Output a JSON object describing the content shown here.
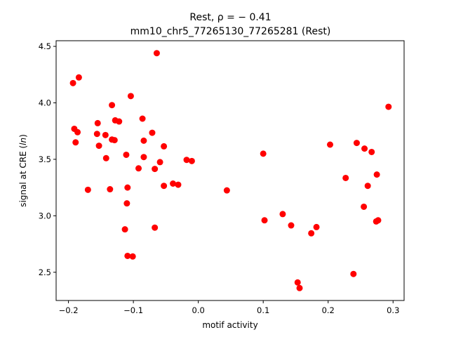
{
  "chart_data": {
    "type": "scatter",
    "title_line1": "Rest, ρ = − 0.41",
    "title_line2": "mm10_chr5_77265130_77265281 (Rest)",
    "xlabel": "motif activity",
    "ylabel": "signal at CRE (ln)",
    "xlim": [
      -0.219,
      0.317
    ],
    "ylim": [
      2.25,
      4.55
    ],
    "xticks": [
      -0.2,
      -0.1,
      0.0,
      0.1,
      0.2,
      0.3
    ],
    "xtick_labels": [
      "−0.2",
      "−0.1",
      "0.0",
      "0.1",
      "0.2",
      "0.3"
    ],
    "yticks": [
      2.5,
      3.0,
      3.5,
      4.0,
      4.5
    ],
    "ytick_labels": [
      "2.5",
      "3.0",
      "3.5",
      "4.0",
      "4.5"
    ],
    "grid": false,
    "marker_color": "#ff0000",
    "points": [
      {
        "x": -0.193,
        "y": 4.175
      },
      {
        "x": -0.184,
        "y": 4.225
      },
      {
        "x": -0.191,
        "y": 3.77
      },
      {
        "x": -0.186,
        "y": 3.74
      },
      {
        "x": -0.189,
        "y": 3.65
      },
      {
        "x": -0.17,
        "y": 3.23
      },
      {
        "x": -0.155,
        "y": 3.82
      },
      {
        "x": -0.156,
        "y": 3.725
      },
      {
        "x": -0.153,
        "y": 3.62
      },
      {
        "x": -0.143,
        "y": 3.715
      },
      {
        "x": -0.142,
        "y": 3.51
      },
      {
        "x": -0.136,
        "y": 3.235
      },
      {
        "x": -0.133,
        "y": 3.98
      },
      {
        "x": -0.133,
        "y": 3.675
      },
      {
        "x": -0.129,
        "y": 3.67
      },
      {
        "x": -0.128,
        "y": 3.845
      },
      {
        "x": -0.122,
        "y": 3.835
      },
      {
        "x": -0.111,
        "y": 3.54
      },
      {
        "x": -0.109,
        "y": 3.25
      },
      {
        "x": -0.11,
        "y": 3.11
      },
      {
        "x": -0.113,
        "y": 2.88
      },
      {
        "x": -0.109,
        "y": 2.645
      },
      {
        "x": -0.101,
        "y": 2.64
      },
      {
        "x": -0.104,
        "y": 4.06
      },
      {
        "x": -0.092,
        "y": 3.42
      },
      {
        "x": -0.086,
        "y": 3.86
      },
      {
        "x": -0.084,
        "y": 3.665
      },
      {
        "x": -0.084,
        "y": 3.52
      },
      {
        "x": -0.071,
        "y": 3.735
      },
      {
        "x": -0.067,
        "y": 3.415
      },
      {
        "x": -0.067,
        "y": 2.895
      },
      {
        "x": -0.064,
        "y": 4.44
      },
      {
        "x": -0.059,
        "y": 3.475
      },
      {
        "x": -0.053,
        "y": 3.615
      },
      {
        "x": -0.053,
        "y": 3.265
      },
      {
        "x": -0.039,
        "y": 3.285
      },
      {
        "x": -0.031,
        "y": 3.275
      },
      {
        "x": -0.018,
        "y": 3.495
      },
      {
        "x": -0.01,
        "y": 3.485
      },
      {
        "x": 0.044,
        "y": 3.225
      },
      {
        "x": 0.1,
        "y": 3.55
      },
      {
        "x": 0.102,
        "y": 2.96
      },
      {
        "x": 0.13,
        "y": 3.015
      },
      {
        "x": 0.143,
        "y": 2.915
      },
      {
        "x": 0.153,
        "y": 2.41
      },
      {
        "x": 0.156,
        "y": 2.36
      },
      {
        "x": 0.174,
        "y": 2.845
      },
      {
        "x": 0.182,
        "y": 2.9
      },
      {
        "x": 0.203,
        "y": 3.63
      },
      {
        "x": 0.227,
        "y": 3.335
      },
      {
        "x": 0.239,
        "y": 2.485
      },
      {
        "x": 0.244,
        "y": 3.645
      },
      {
        "x": 0.255,
        "y": 3.08
      },
      {
        "x": 0.256,
        "y": 3.595
      },
      {
        "x": 0.261,
        "y": 3.265
      },
      {
        "x": 0.267,
        "y": 3.565
      },
      {
        "x": 0.274,
        "y": 2.95
      },
      {
        "x": 0.277,
        "y": 2.96
      },
      {
        "x": 0.275,
        "y": 3.365
      },
      {
        "x": 0.293,
        "y": 3.965
      }
    ]
  }
}
